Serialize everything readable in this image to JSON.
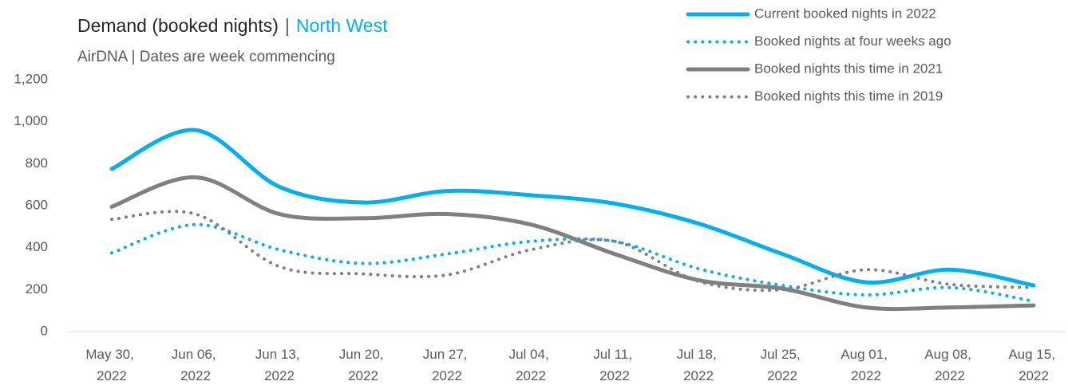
{
  "chart_data": {
    "type": "line",
    "title": "Demand (booked nights)",
    "title_separator": "|",
    "title_highlight": "North West",
    "subtitle": "AirDNA | Dates are week commencing",
    "categories": [
      "May 30, 2022",
      "Jun 06, 2022",
      "Jun 13, 2022",
      "Jun 20, 2022",
      "Jun 27, 2022",
      "Jul 04, 2022",
      "Jul 11, 2022",
      "Jul 18, 2022",
      "Jul 25, 2022",
      "Aug 01, 2022",
      "Aug 08, 2022",
      "Aug 15, 2022"
    ],
    "series": [
      {
        "name": "Current booked nights in 2022",
        "color": "#00b0f0",
        "dash": "solid",
        "values": [
          775,
          960,
          690,
          615,
          670,
          650,
          610,
          515,
          370,
          235,
          295,
          220
        ]
      },
      {
        "name": "Booked nights at four weeks ago",
        "color": "#00b0f0",
        "dash": "dotted",
        "values": [
          375,
          510,
          390,
          325,
          370,
          430,
          430,
          300,
          220,
          175,
          210,
          145
        ]
      },
      {
        "name": "Booked nights this time in 2021",
        "color": "#808080",
        "dash": "solid",
        "values": [
          595,
          735,
          560,
          540,
          560,
          510,
          370,
          245,
          205,
          115,
          115,
          125
        ]
      },
      {
        "name": "Booked nights this time in 2019",
        "color": "#808080",
        "dash": "dotted",
        "values": [
          535,
          560,
          310,
          275,
          270,
          390,
          430,
          240,
          200,
          295,
          225,
          210
        ]
      }
    ],
    "ylim": [
      0,
      1200
    ],
    "yticks": [
      0,
      200,
      400,
      600,
      800,
      {
        "value": 1000,
        "label": "1,000"
      },
      {
        "value": 1200,
        "label": "1,200"
      }
    ],
    "legend": "top-right"
  }
}
